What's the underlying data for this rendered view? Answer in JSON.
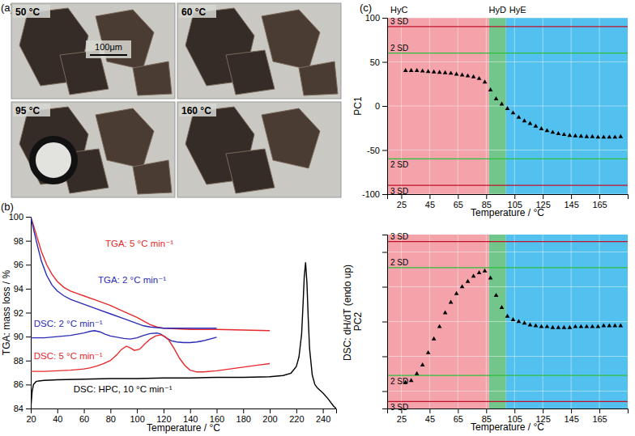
{
  "micrographs": {
    "panel_label": "(a)",
    "images": [
      "50 °C",
      "60 °C",
      "95 °C",
      "160 °C"
    ],
    "scale_bar": "100μm"
  },
  "chart_data": [
    {
      "type": "line",
      "panel_label": "(b)",
      "x_label": "Temperature / °C",
      "y_label": "TGA: mass loss / %",
      "y2_label": "DSC: dH/dT (endo up)",
      "xlim": [
        20,
        250
      ],
      "xticks": [
        20,
        40,
        60,
        80,
        100,
        120,
        140,
        160,
        180,
        200,
        220,
        240
      ],
      "ylim": [
        84,
        100
      ],
      "yticks": [
        84,
        86,
        88,
        90,
        92,
        94,
        96,
        98,
        100
      ],
      "series": [
        {
          "name": "TGA: 5 °C min⁻¹",
          "color": "#e8282a",
          "x": [
            20,
            22,
            25,
            28,
            32,
            36,
            40,
            45,
            50,
            55,
            60,
            70,
            80,
            90,
            100,
            105,
            110,
            115,
            120,
            130,
            140,
            160,
            180,
            200
          ],
          "values": [
            100,
            99.3,
            98.2,
            97.1,
            96.0,
            95.2,
            94.6,
            94.1,
            93.8,
            93.6,
            93.4,
            93.0,
            92.6,
            92.1,
            91.6,
            91.3,
            91.0,
            90.8,
            90.7,
            90.65,
            90.6,
            90.6,
            90.55,
            90.5
          ]
        },
        {
          "name": "TGA: 2 °C min⁻¹",
          "color": "#2b2bb5",
          "x": [
            20,
            22,
            25,
            28,
            32,
            36,
            40,
            45,
            50,
            55,
            60,
            70,
            80,
            90,
            100,
            105,
            110,
            115,
            120,
            130,
            140,
            160
          ],
          "values": [
            100,
            99.0,
            97.6,
            96.3,
            95.1,
            94.3,
            93.8,
            93.4,
            93.1,
            92.9,
            92.7,
            92.3,
            91.9,
            91.5,
            91.1,
            90.9,
            90.8,
            90.75,
            90.7,
            90.7,
            90.7,
            90.7
          ]
        },
        {
          "name": "DSC: 2 °C min⁻¹",
          "color": "#2b2bb5",
          "x": [
            20,
            30,
            40,
            50,
            55,
            60,
            65,
            68,
            72,
            76,
            80,
            85,
            90,
            95,
            100,
            105,
            110,
            115,
            118,
            122,
            126,
            130,
            135,
            140,
            145,
            150,
            155,
            160
          ],
          "values": [
            89.9,
            89.9,
            90.0,
            90.1,
            90.2,
            90.3,
            90.45,
            90.5,
            90.4,
            90.2,
            90.05,
            89.95,
            89.85,
            89.8,
            89.9,
            90.1,
            90.25,
            90.3,
            90.2,
            89.9,
            89.65,
            89.55,
            89.5,
            89.5,
            89.55,
            89.65,
            89.8,
            89.95
          ]
        },
        {
          "name": "DSC: 5 °C min⁻¹",
          "color": "#e8282a",
          "x": [
            20,
            30,
            40,
            50,
            60,
            65,
            70,
            75,
            80,
            85,
            88,
            92,
            95,
            98,
            102,
            106,
            110,
            114,
            118,
            121,
            124,
            128,
            132,
            136,
            140,
            145,
            150,
            160,
            170,
            180,
            190,
            200
          ],
          "values": [
            87.1,
            87.1,
            87.15,
            87.2,
            87.3,
            87.4,
            87.55,
            87.75,
            88.0,
            88.5,
            88.9,
            89.2,
            89.05,
            88.85,
            88.95,
            89.4,
            89.8,
            90.05,
            90.15,
            90.0,
            89.7,
            89.0,
            88.2,
            87.6,
            87.2,
            87.05,
            87.05,
            87.15,
            87.3,
            87.45,
            87.6,
            87.75
          ]
        },
        {
          "name": "DSC: HPC, 10 °C min⁻¹",
          "color": "#000000",
          "x": [
            20,
            21,
            22,
            24,
            26,
            30,
            40,
            60,
            80,
            100,
            120,
            140,
            160,
            180,
            200,
            210,
            216,
            220,
            222,
            224,
            225,
            226,
            227,
            228,
            229,
            230,
            232,
            234,
            236,
            240,
            244,
            248,
            250
          ],
          "values": [
            84.0,
            85.4,
            86.0,
            86.25,
            86.3,
            86.35,
            86.4,
            86.45,
            86.5,
            86.5,
            86.55,
            86.55,
            86.6,
            86.6,
            86.65,
            86.75,
            86.95,
            87.5,
            88.3,
            90.2,
            92.5,
            95.0,
            96.2,
            94.5,
            91.5,
            89.0,
            86.8,
            86.0,
            85.7,
            85.3,
            84.8,
            84.2,
            84.0
          ]
        }
      ]
    },
    {
      "type": "scatter",
      "panel_label": "(c)",
      "x_label": "Temperature / °C",
      "y_label": "PC1",
      "xlim": [
        15,
        185
      ],
      "xticks": [
        25,
        45,
        65,
        85,
        105,
        125,
        145,
        165
      ],
      "ylim": [
        -100,
        100
      ],
      "yticks": [
        -100,
        -50,
        0,
        50,
        100
      ],
      "grid": true,
      "marker": "triangle",
      "color": "#000000",
      "regions": [
        {
          "from": 15,
          "to": 87,
          "label": "HyC",
          "color": "#f4a3ab"
        },
        {
          "from": 87,
          "to": 99,
          "label": "HyD",
          "color": "#72c68c"
        },
        {
          "from": 99,
          "to": 185,
          "label": "HyE",
          "color": "#52c1ef"
        }
      ],
      "reference_lines": [
        {
          "value": 90,
          "label": "3 SD",
          "color": "#c0102a"
        },
        {
          "value": 60,
          "label": "2 SD",
          "color": "#2fbf3a"
        },
        {
          "value": -60,
          "label": "2 SD",
          "color": "#2fbf3a"
        },
        {
          "value": -90,
          "label": "3 SD",
          "color": "#c0102a"
        }
      ],
      "x": [
        28,
        32,
        36,
        40,
        44,
        48,
        52,
        56,
        60,
        64,
        68,
        72,
        76,
        80,
        84,
        88,
        92,
        96,
        100,
        104,
        108,
        112,
        116,
        120,
        124,
        128,
        132,
        136,
        140,
        144,
        148,
        152,
        156,
        160,
        164,
        168,
        172,
        176,
        180
      ],
      "values": [
        40,
        40,
        40,
        39.5,
        39,
        38.5,
        38,
        37.5,
        37,
        36,
        35,
        34,
        33,
        31,
        27,
        18,
        8,
        2,
        -3,
        -8,
        -13,
        -17,
        -20,
        -23,
        -26,
        -28,
        -30,
        -31.5,
        -32.5,
        -33.5,
        -34,
        -34.5,
        -35,
        -35,
        -35.5,
        -35.5,
        -35.5,
        -35.5,
        -35
      ]
    },
    {
      "type": "scatter",
      "x_label": "Temperature / °C",
      "y_label": "PC2",
      "xlim": [
        15,
        185
      ],
      "xticks": [
        25,
        45,
        65,
        85,
        105,
        125,
        145,
        165
      ],
      "ylim": [
        -50,
        50
      ],
      "yticks": [
        -40,
        -20,
        0,
        20,
        40
      ],
      "tick_labels": "x",
      "grid": true,
      "marker": "triangle",
      "color": "#000000",
      "regions": [
        {
          "from": 15,
          "to": 87,
          "color": "#f4a3ab"
        },
        {
          "from": 87,
          "to": 99,
          "color": "#72c68c"
        },
        {
          "from": 99,
          "to": 185,
          "color": "#52c1ef"
        }
      ],
      "reference_lines": [
        {
          "value": 46,
          "label": "3 SD",
          "color": "#c0102a"
        },
        {
          "value": 31,
          "label": "2 SD",
          "color": "#2fbf3a"
        },
        {
          "value": -31,
          "label": "2 SD",
          "color": "#2fbf3a"
        },
        {
          "value": -46,
          "label": "3 SD",
          "color": "#c0102a"
        }
      ],
      "x": [
        28,
        32,
        36,
        40,
        44,
        48,
        52,
        56,
        60,
        64,
        68,
        72,
        76,
        80,
        84,
        88,
        92,
        96,
        100,
        104,
        108,
        112,
        116,
        120,
        124,
        128,
        132,
        136,
        140,
        144,
        148,
        152,
        156,
        160,
        164,
        168,
        172,
        176,
        180
      ],
      "values": [
        -35,
        -34,
        -30,
        -25,
        -18,
        -10,
        -3,
        5,
        11,
        16,
        20,
        23,
        26,
        28,
        29,
        25,
        15,
        8,
        3,
        1,
        0,
        -1,
        -2,
        -2.5,
        -3,
        -3,
        -3.5,
        -3.5,
        -3.5,
        -3.5,
        -3,
        -3,
        -3,
        -3,
        -3,
        -2.5,
        -2.5,
        -2.5,
        -2.5
      ]
    }
  ]
}
